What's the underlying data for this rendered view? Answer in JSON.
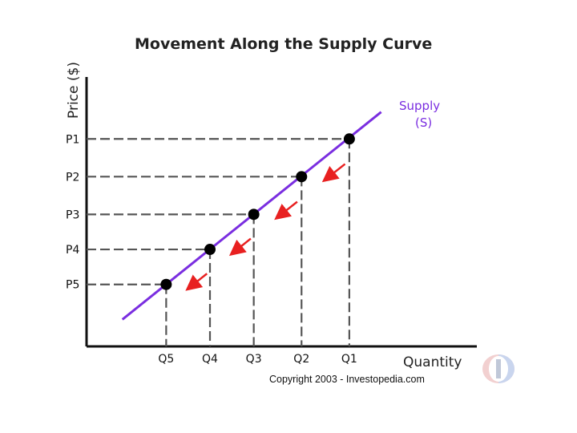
{
  "chart_data": {
    "type": "line",
    "title": "Movement Along the Supply Curve",
    "ylabel": "Price ($)",
    "xlabel": "Quantity",
    "curve_label": [
      "Supply",
      "(S)"
    ],
    "x_ticks": [
      "Q5",
      "Q4",
      "Q3",
      "Q2",
      "Q1"
    ],
    "y_ticks": [
      "P1",
      "P2",
      "P3",
      "P4",
      "P5"
    ],
    "xlim": [
      0,
      10
    ],
    "ylim": [
      0,
      10
    ],
    "points": [
      {
        "label": "Q5/P5",
        "x": 2.0,
        "y": 2.3
      },
      {
        "label": "Q4/P4",
        "x": 3.1,
        "y": 3.6
      },
      {
        "label": "Q3/P3",
        "x": 4.2,
        "y": 4.9
      },
      {
        "label": "Q2/P2",
        "x": 5.4,
        "y": 6.3
      },
      {
        "label": "Q1/P1",
        "x": 6.6,
        "y": 7.7
      }
    ],
    "curve": [
      [
        0.9,
        1.0
      ],
      [
        7.4,
        8.7
      ]
    ],
    "arrow_color": "#e82020",
    "curve_color": "#7a2ee0",
    "grid": false
  },
  "copyright": "Copyright 2003 - Investopedia.com"
}
